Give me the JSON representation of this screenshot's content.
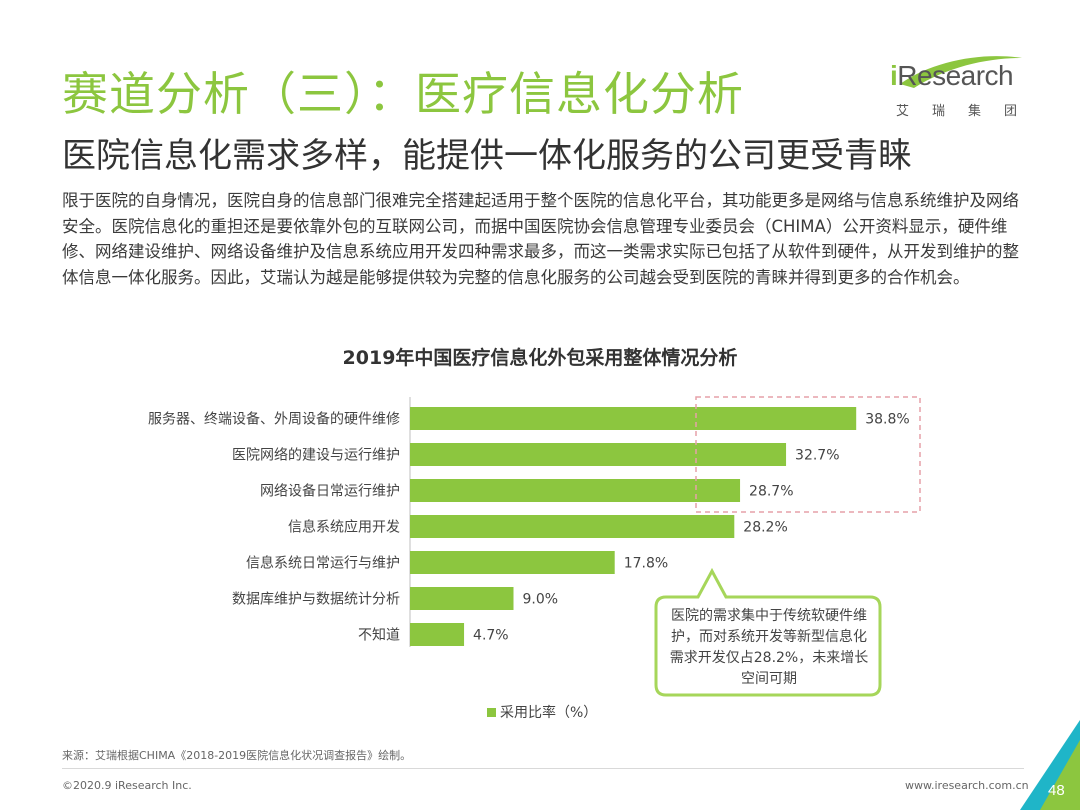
{
  "header": {
    "title": "赛道分析（三）：医疗信息化分析",
    "subtitle": "医院信息化需求多样，能提供一体化服务的公司更受青睐"
  },
  "logo": {
    "i": "i",
    "rest": "Research",
    "sub": "艾瑞集团"
  },
  "body": {
    "paragraph": "限于医院的自身情况，医院自身的信息部门很难完全搭建起适用于整个医院的信息化平台，其功能更多是网络与信息系统维护及网络安全。医院信息化的重担还是要依靠外包的互联网公司，而据中国医院协会信息管理专业委员会（CHIMA）公开资料显示，硬件维修、网络建设维护、网络设备维护及信息系统应用开发四种需求最多，而这一类需求实际已包括了从软件到硬件，从开发到维护的整体信息一体化服务。因此，艾瑞认为越是能够提供较为完整的信息化服务的公司越会受到医院的青睐并得到更多的合作机会。"
  },
  "chart_data": {
    "type": "bar",
    "orientation": "horizontal",
    "title": "2019年中国医疗信息化外包采用整体情况分析",
    "categories": [
      "服务器、终端设备、外周设备的硬件维修",
      "医院网络的建设与运行维护",
      "网络设备日常运行维护",
      "信息系统应用开发",
      "信息系统日常运行与维护",
      "数据库维护与数据统计分析",
      "不知道"
    ],
    "values": [
      38.8,
      32.7,
      28.7,
      28.2,
      17.8,
      9.0,
      4.7
    ],
    "value_labels": [
      "38.8%",
      "32.7%",
      "28.7%",
      "28.2%",
      "17.8%",
      "9.0%",
      "4.7%"
    ],
    "series_name": "采用比率（%）",
    "xlim": [
      0,
      40
    ],
    "grid": false,
    "legend": "bottom-center",
    "highlight_top_n": 3,
    "bar_color": "#8cc63f",
    "highlight_color": "#e6a0a8"
  },
  "callout": {
    "text": "医院的需求集中于传统软硬件维护，而对系统开发等新型信息化需求开发仅占28.2%，未来增长空间可期",
    "border_color": "#a6d65a"
  },
  "footer": {
    "source": "来源：艾瑞根据CHIMA《2018-2019医院信息化状况调查报告》绘制。",
    "copyright": "©2020.9 iResearch Inc.",
    "website": "www.iresearch.com.cn",
    "page": "48"
  },
  "colors": {
    "accent": "#8cc63f",
    "corner_green": "#8cc63f",
    "corner_teal": "#1fb5c8"
  }
}
